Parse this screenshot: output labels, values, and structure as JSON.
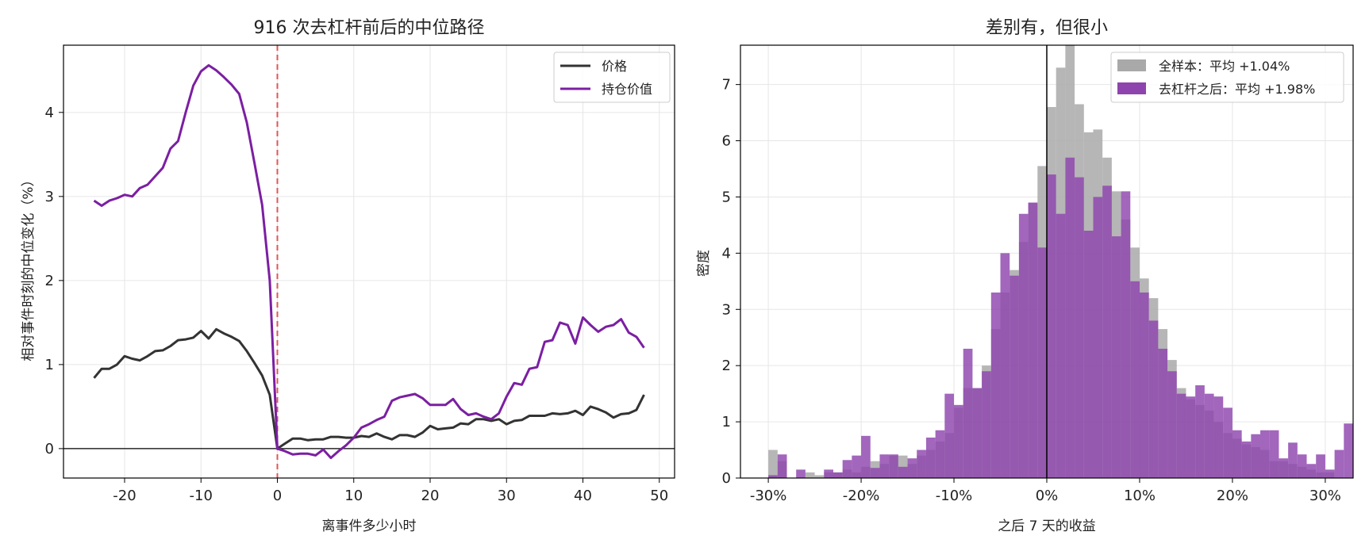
{
  "chart_data": [
    {
      "type": "line",
      "title": "916 次去杠杆前后的中位路径",
      "xlabel": "离事件多少小时",
      "ylabel": "相对事件时刻的中位变化（%）",
      "xlim": [
        -28,
        52
      ],
      "ylim": [
        -0.35,
        4.8
      ],
      "xticks": [
        -20,
        -10,
        0,
        10,
        20,
        30,
        40,
        50
      ],
      "yticks": [
        0,
        1,
        2,
        3,
        4
      ],
      "grid": true,
      "legend_position": "top-right",
      "event_line_x": 0,
      "baseline_y": 0,
      "x": [
        -24,
        -23,
        -22,
        -21,
        -20,
        -19,
        -18,
        -17,
        -16,
        -15,
        -14,
        -13,
        -12,
        -11,
        -10,
        -9,
        -8,
        -7,
        -6,
        -5,
        -4,
        -3,
        -2,
        -1,
        0,
        1,
        2,
        3,
        4,
        5,
        6,
        7,
        8,
        9,
        10,
        11,
        12,
        13,
        14,
        15,
        16,
        17,
        18,
        19,
        20,
        21,
        22,
        23,
        24,
        25,
        26,
        27,
        28,
        29,
        30,
        31,
        32,
        33,
        34,
        35,
        36,
        37,
        38,
        39,
        40,
        41,
        42,
        43,
        44,
        45,
        46,
        47,
        48
      ],
      "series": [
        {
          "name": "价格",
          "color": "#333333",
          "values": [
            0.84,
            0.95,
            0.95,
            1.0,
            1.1,
            1.07,
            1.05,
            1.1,
            1.16,
            1.17,
            1.22,
            1.29,
            1.3,
            1.32,
            1.4,
            1.31,
            1.42,
            1.37,
            1.33,
            1.28,
            1.16,
            1.02,
            0.87,
            0.64,
            0.0,
            0.06,
            0.12,
            0.12,
            0.1,
            0.11,
            0.11,
            0.14,
            0.14,
            0.13,
            0.13,
            0.15,
            0.14,
            0.18,
            0.14,
            0.11,
            0.16,
            0.16,
            0.14,
            0.19,
            0.27,
            0.23,
            0.24,
            0.25,
            0.3,
            0.29,
            0.35,
            0.35,
            0.33,
            0.35,
            0.29,
            0.33,
            0.34,
            0.39,
            0.39,
            0.39,
            0.42,
            0.41,
            0.42,
            0.45,
            0.4,
            0.5,
            0.47,
            0.43,
            0.37,
            0.41,
            0.42,
            0.46,
            0.64
          ]
        },
        {
          "name": "持仓价值",
          "color": "#7b1fa2",
          "values": [
            2.95,
            2.89,
            2.95,
            2.98,
            3.02,
            3.0,
            3.1,
            3.14,
            3.24,
            3.34,
            3.57,
            3.66,
            4.0,
            4.32,
            4.49,
            4.56,
            4.5,
            4.42,
            4.33,
            4.22,
            3.88,
            3.4,
            2.9,
            2.0,
            0.0,
            -0.03,
            -0.07,
            -0.06,
            -0.06,
            -0.08,
            -0.01,
            -0.11,
            -0.03,
            0.04,
            0.13,
            0.25,
            0.29,
            0.34,
            0.38,
            0.57,
            0.61,
            0.63,
            0.65,
            0.6,
            0.52,
            0.52,
            0.52,
            0.59,
            0.47,
            0.4,
            0.42,
            0.38,
            0.35,
            0.42,
            0.62,
            0.78,
            0.76,
            0.95,
            0.97,
            1.27,
            1.29,
            1.5,
            1.47,
            1.25,
            1.56,
            1.47,
            1.39,
            1.45,
            1.47,
            1.54,
            1.38,
            1.33,
            1.2
          ]
        }
      ]
    },
    {
      "type": "histogram",
      "title": "差别有，但很小",
      "xlabel": "之后 7 天的收益",
      "ylabel": "密度",
      "xlim": [
        -0.33,
        0.33
      ],
      "ylim": [
        0,
        7.7
      ],
      "xticks": [
        -0.3,
        -0.2,
        -0.1,
        0.0,
        0.1,
        0.2,
        0.3
      ],
      "xtick_labels": [
        "-30%",
        "-20%",
        "-10%",
        "0%",
        "10%",
        "20%",
        "30%"
      ],
      "yticks": [
        0,
        1,
        2,
        3,
        4,
        5,
        6,
        7
      ],
      "grid": true,
      "legend_position": "top-right",
      "zero_line_x": 0,
      "bin_start": -0.3,
      "bin_width": 0.01,
      "series": [
        {
          "name": "全样本：平均 +1.04%",
          "color": "#a9a9a9",
          "values": [
            0.5,
            0.3,
            0.0,
            0.0,
            0.1,
            0.05,
            0.1,
            0.1,
            0.15,
            0.1,
            0.2,
            0.3,
            0.25,
            0.4,
            0.4,
            0.25,
            0.4,
            0.5,
            0.65,
            0.8,
            1.25,
            1.6,
            1.6,
            2.0,
            2.65,
            3.3,
            3.7,
            4.2,
            4.9,
            5.55,
            6.6,
            7.3,
            7.7,
            6.65,
            6.15,
            6.2,
            5.7,
            5.1,
            4.6,
            4.1,
            3.55,
            3.2,
            2.65,
            2.1,
            1.6,
            1.4,
            1.3,
            1.2,
            1.0,
            0.8,
            0.7,
            0.6,
            0.55,
            0.5,
            0.3,
            0.3,
            0.25,
            0.2,
            0.15,
            0.1,
            0.1
          ]
        },
        {
          "name": "去杠杆之后：平均 +1.98%",
          "color": "#8e44ad",
          "values": [
            0.05,
            0.42,
            0.0,
            0.15,
            0.0,
            0.0,
            0.15,
            0.1,
            0.32,
            0.4,
            0.75,
            0.18,
            0.42,
            0.42,
            0.2,
            0.35,
            0.5,
            0.72,
            0.85,
            1.5,
            1.3,
            2.3,
            1.6,
            1.9,
            3.3,
            4.0,
            3.6,
            4.7,
            4.9,
            4.1,
            5.4,
            4.7,
            5.7,
            5.35,
            4.4,
            5.0,
            5.2,
            4.3,
            5.1,
            3.5,
            3.3,
            2.8,
            2.3,
            1.9,
            1.5,
            1.45,
            1.65,
            1.5,
            1.45,
            1.25,
            0.85,
            0.65,
            0.78,
            0.85,
            0.85,
            0.35,
            0.63,
            0.42,
            0.25,
            0.42,
            0.15,
            0.5,
            0.97
          ]
        }
      ]
    }
  ]
}
